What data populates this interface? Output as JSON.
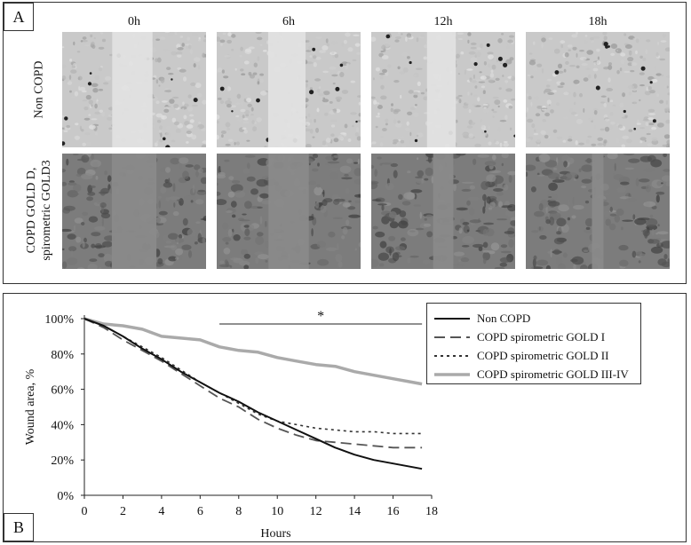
{
  "panel_a": {
    "label": "A",
    "time_labels": [
      "0h",
      "6h",
      "12h",
      "18h"
    ],
    "row_labels": {
      "non_copd": "Non COPD",
      "copd_line1": "COPD GOLD D,",
      "copd_line2": "spirometric GOLD3"
    },
    "wound_gap_fraction": {
      "non_copd": [
        0.28,
        0.26,
        0.2,
        0.0
      ],
      "copd": [
        0.31,
        0.28,
        0.14,
        0.08
      ]
    }
  },
  "panel_b": {
    "label": "B"
  },
  "chart_data": {
    "type": "line",
    "xlabel": "Hours",
    "ylabel": "Wound area, %",
    "xlim": [
      0,
      18
    ],
    "ylim": [
      0,
      100
    ],
    "xticks": [
      0,
      2,
      4,
      6,
      8,
      10,
      12,
      14,
      16,
      18
    ],
    "yticks": [
      0,
      20,
      40,
      60,
      80,
      100
    ],
    "ytick_labels": [
      "0%",
      "20%",
      "40%",
      "60%",
      "80%",
      "100%"
    ],
    "legend_position": "top-right",
    "annotation": {
      "text": "*",
      "x_start": 7,
      "x_end": 17.5,
      "y": 97
    },
    "series": [
      {
        "name": "Non COPD",
        "color": "#111111",
        "dash": "solid",
        "x": [
          0,
          1,
          2,
          3,
          4,
          5,
          6,
          7,
          8,
          9,
          10,
          11,
          12,
          13,
          14,
          15,
          16,
          17,
          17.5
        ],
        "y": [
          100,
          96,
          90,
          83,
          77,
          70,
          64,
          58,
          53,
          47,
          42,
          37,
          32,
          27,
          23,
          20,
          18,
          16,
          15
        ]
      },
      {
        "name": "COPD spirometric GOLD I",
        "color": "#555555",
        "dash": "long-dash",
        "x": [
          0,
          1,
          2,
          3,
          4,
          5,
          6,
          7,
          8,
          9,
          10,
          11,
          12,
          13,
          14,
          15,
          16,
          17,
          17.5
        ],
        "y": [
          100,
          95,
          88,
          82,
          76,
          69,
          62,
          55,
          50,
          43,
          38,
          34,
          31,
          30,
          29,
          28,
          27,
          27,
          27
        ]
      },
      {
        "name": "COPD spirometric GOLD II",
        "color": "#333333",
        "dash": "dotted",
        "x": [
          0,
          1,
          2,
          3,
          4,
          5,
          6,
          7,
          8,
          9,
          10,
          11,
          12,
          13,
          14,
          15,
          16,
          17,
          17.5
        ],
        "y": [
          100,
          96,
          90,
          84,
          78,
          71,
          64,
          58,
          52,
          46,
          42,
          40,
          38,
          37,
          36,
          36,
          35,
          35,
          35
        ]
      },
      {
        "name": "COPD spirometric GOLD III-IV",
        "color": "#aaaaaa",
        "dash": "solid-thick",
        "x": [
          0,
          1,
          2,
          3,
          4,
          5,
          6,
          7,
          8,
          9,
          10,
          11,
          12,
          13,
          14,
          15,
          16,
          17,
          17.5
        ],
        "y": [
          100,
          97,
          96,
          94,
          90,
          89,
          88,
          84,
          82,
          81,
          78,
          76,
          74,
          73,
          70,
          68,
          66,
          64,
          63
        ]
      }
    ]
  }
}
